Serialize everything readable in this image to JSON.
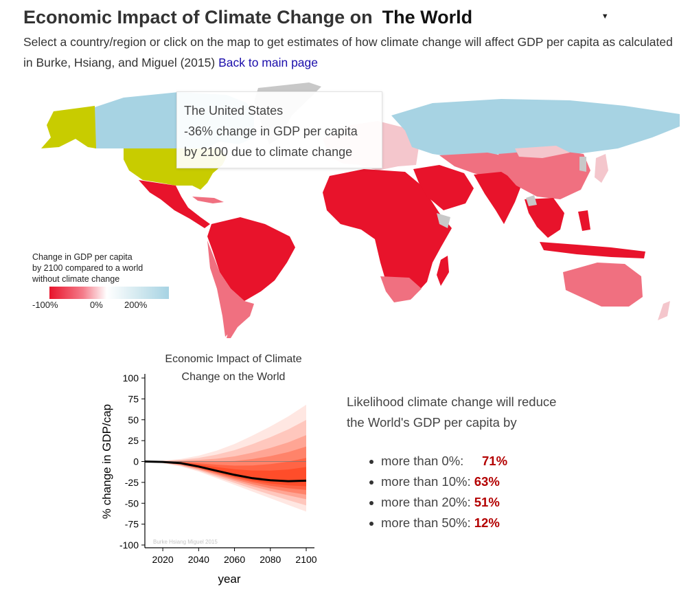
{
  "header": {
    "title": "Economic Impact of Climate Change on",
    "region_selected": "The World",
    "subtitle": "Select a country/region or click on the map to get estimates of how climate change will affect GDP per capita as calculated in Burke, Hsiang, and Miguel (2015)",
    "back_link": "Back to main page"
  },
  "tooltip": {
    "line1": "The United States",
    "line2": "-36% change in GDP per capita",
    "line3": "by 2100 due to climate change"
  },
  "legend": {
    "title_line1": "Change in GDP per capita",
    "title_line2": "by 2100 compared to a world",
    "title_line3": "without climate change",
    "tick_left": "-100%",
    "tick_mid": "0%",
    "tick_right": "200%"
  },
  "colors": {
    "highlight": "#c8cc00",
    "gain": "#a7d3e3",
    "loss_strong": "#e8132b",
    "loss_mid": "#f07080",
    "no_data": "#c8c8c8",
    "link": "#1a0dab",
    "pct": "#b30000"
  },
  "likelihood": {
    "title_line1": "Likelihood climate change will reduce",
    "title_line2": "the World's GDP per capita by",
    "items": [
      {
        "label": "more than 0%:",
        "value": "71%"
      },
      {
        "label": "more than 10%:",
        "value": "63%"
      },
      {
        "label": "more than 20%:",
        "value": "51%"
      },
      {
        "label": "more than 50%:",
        "value": "12%"
      }
    ]
  },
  "chart_data": {
    "type": "line",
    "title_line1": "Economic Impact of Climate",
    "title_line2": "Change on the World",
    "xlabel": "year",
    "ylabel": "% change in GDP/cap",
    "watermark": "Burke Hsiang Miguel 2015",
    "xlim": [
      2010,
      2100
    ],
    "ylim": [
      -100,
      100
    ],
    "xticks": [
      2020,
      2040,
      2060,
      2080,
      2100
    ],
    "yticks": [
      100,
      75,
      50,
      25,
      0,
      -25,
      -50,
      -75,
      -100
    ],
    "series": [
      {
        "name": "",
        "x": [
          2010,
          2020,
          2030,
          2040,
          2050,
          2060,
          2070,
          2080,
          2090,
          2100
        ],
        "y": [
          0,
          -0.5,
          -2,
          -6,
          -11,
          -16,
          -20,
          -22.5,
          -23.5,
          -23
        ]
      }
    ],
    "band_upper": [
      0,
      1,
      3,
      7,
      13,
      21,
      31,
      42,
      54,
      68
    ],
    "band_lower": [
      0,
      -2,
      -6,
      -12,
      -20,
      -28,
      -36,
      -44,
      -52,
      -60
    ]
  }
}
